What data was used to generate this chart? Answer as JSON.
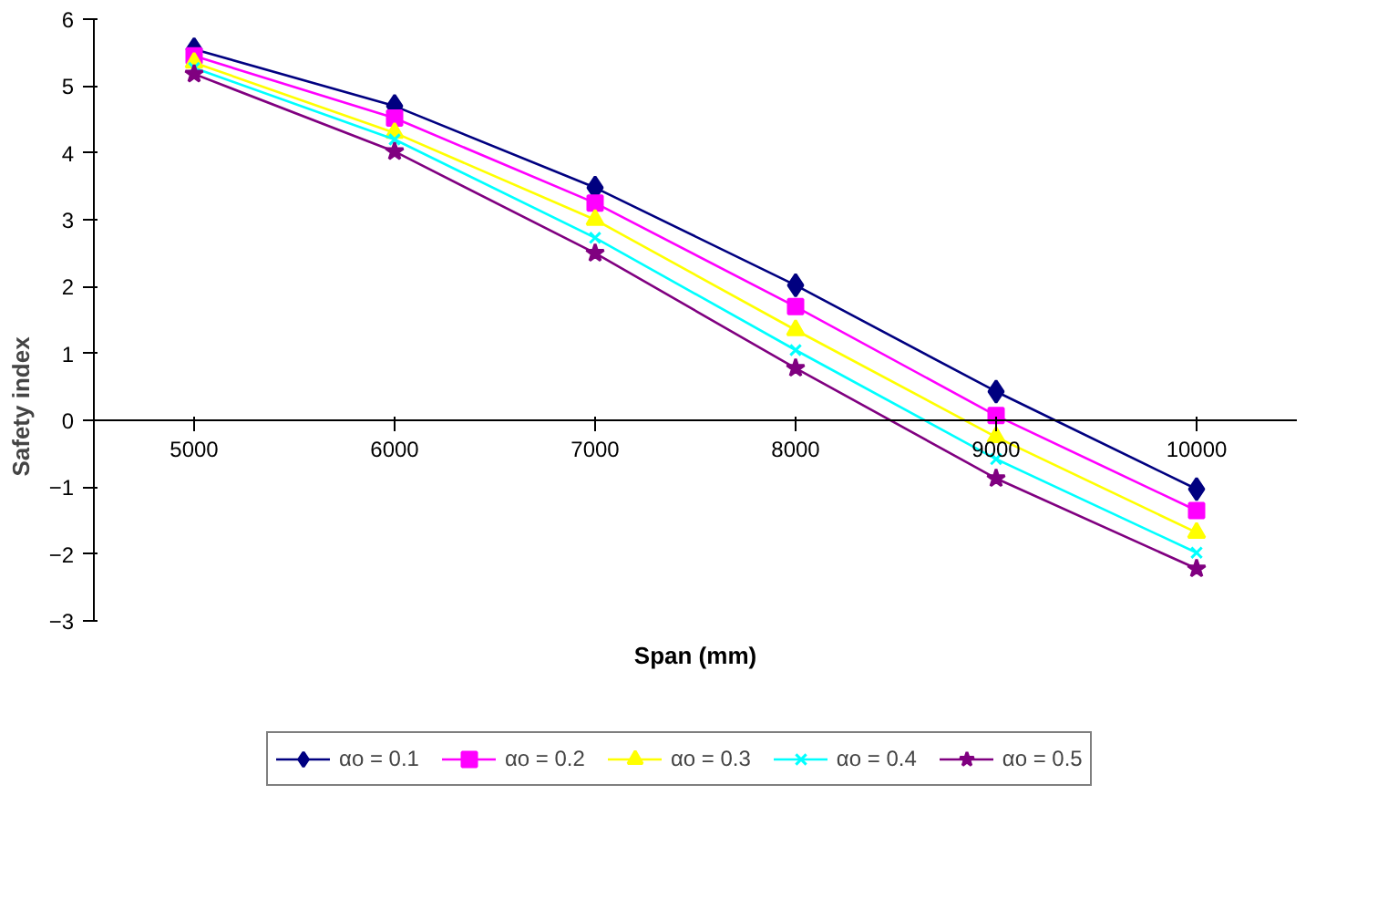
{
  "chart_data": {
    "type": "line",
    "xlabel": "Span (mm)",
    "ylabel": "Safety index",
    "categories": [
      "5000",
      "6000",
      "7000",
      "8000",
      "9000",
      "10000"
    ],
    "ylim": [
      -3,
      6
    ],
    "yticks": [
      -3,
      -2,
      -1,
      0,
      1,
      2,
      3,
      4,
      5,
      6
    ],
    "grid": false,
    "legend": "bottom",
    "series": [
      {
        "name": "αo = 0.1",
        "color": "#000080",
        "marker": "diamond",
        "values": [
          5.55,
          4.7,
          3.48,
          2.02,
          0.43,
          -1.03
        ]
      },
      {
        "name": "αo = 0.2",
        "color": "#ff00ff",
        "marker": "square",
        "values": [
          5.45,
          4.52,
          3.25,
          1.7,
          0.07,
          -1.35
        ]
      },
      {
        "name": "αo = 0.3",
        "color": "#ffff00",
        "marker": "triangle",
        "values": [
          5.35,
          4.3,
          3.0,
          1.35,
          -0.25,
          -1.68
        ]
      },
      {
        "name": "αo = 0.4",
        "color": "#00ffff",
        "marker": "cross",
        "values": [
          5.27,
          4.2,
          2.73,
          1.05,
          -0.58,
          -1.98
        ]
      },
      {
        "name": "αo = 0.5",
        "color": "#800080",
        "marker": "star",
        "values": [
          5.18,
          4.02,
          2.5,
          0.78,
          -0.87,
          -2.22
        ]
      }
    ]
  }
}
